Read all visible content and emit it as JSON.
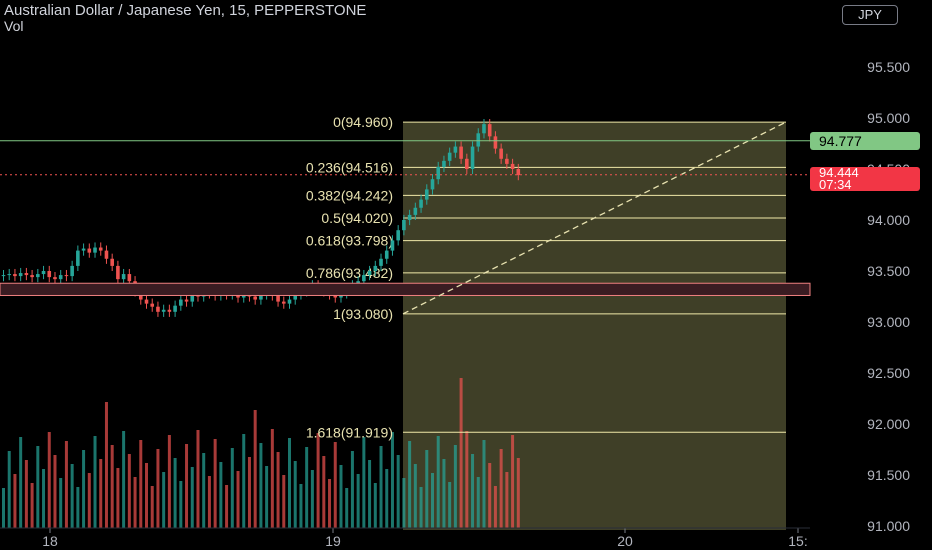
{
  "header": {
    "symbol_title": "Australian Dollar / Japanese Yen, 15, PEPPERSTONE",
    "volume_label": "Vol",
    "currency_button": "JPY"
  },
  "price_tags": {
    "line_price": "94.777",
    "last_price": "94.444",
    "countdown": "07:34"
  },
  "colors": {
    "up": "#26a69a",
    "down": "#ef5350",
    "fib_line": "#f0e9a8",
    "fib_zone": "#4a4a2e",
    "horizontal_line": "#81c784",
    "last_price_tag": "#f23645",
    "grid_text": "#b2b5be"
  },
  "chart_data": {
    "type": "candlestick",
    "y_axis": {
      "range": [
        91.0,
        96.0
      ],
      "ticks": [
        "91.000",
        "91.500",
        "92.000",
        "92.500",
        "93.000",
        "93.500",
        "94.000",
        "94.500",
        "95.000",
        "95.500"
      ]
    },
    "x_axis": {
      "ticks": [
        "18",
        "19",
        "20",
        "15:"
      ]
    },
    "horizontal_line": 94.777,
    "last_price": 94.444,
    "fibonacci": [
      {
        "label": "0(94.960)",
        "price": 94.96
      },
      {
        "label": "0.236(94.516)",
        "price": 94.516
      },
      {
        "label": "0.382(94.242)",
        "price": 94.242
      },
      {
        "label": "0.5(94.020)",
        "price": 94.02
      },
      {
        "label": "0.618(93.798)",
        "price": 93.798
      },
      {
        "label": "0.786(93.482)",
        "price": 93.482
      },
      {
        "label": "1(93.080)",
        "price": 93.08
      },
      {
        "label": "1.618(91.919)",
        "price": 91.919
      }
    ],
    "zone_band": [
      93.26,
      93.38
    ],
    "close_prices": [
      93.46,
      93.47,
      93.45,
      93.48,
      93.46,
      93.44,
      93.47,
      93.5,
      93.44,
      93.42,
      93.46,
      93.45,
      93.55,
      93.7,
      93.72,
      93.68,
      93.73,
      93.7,
      93.62,
      93.55,
      93.42,
      93.47,
      93.4,
      93.3,
      93.22,
      93.18,
      93.15,
      93.1,
      93.12,
      93.1,
      93.16,
      93.22,
      93.2,
      93.28,
      93.25,
      93.3,
      93.28,
      93.26,
      93.3,
      93.27,
      93.29,
      93.24,
      93.28,
      93.25,
      93.22,
      93.27,
      93.3,
      93.26,
      93.2,
      93.18,
      93.22,
      93.27,
      93.3,
      93.33,
      93.36,
      93.32,
      93.3,
      93.27,
      93.24,
      93.28,
      93.32,
      93.36,
      93.4,
      93.46,
      93.5,
      93.55,
      93.62,
      93.7,
      93.8,
      93.9,
      94.0,
      94.05,
      94.12,
      94.2,
      94.3,
      94.4,
      94.52,
      94.58,
      94.66,
      94.72,
      94.6,
      94.5,
      94.72,
      94.85,
      94.94,
      94.82,
      94.7,
      94.6,
      94.55,
      94.5,
      94.44
    ]
  }
}
